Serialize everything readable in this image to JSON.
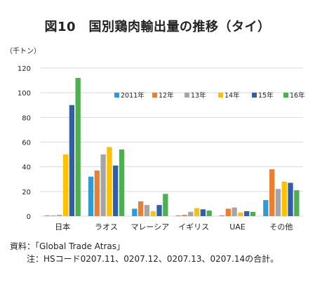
{
  "chart_data": {
    "type": "bar",
    "title": "図10　国別鶏肉輸出量の推移（タイ）",
    "unit_label": "（千トン）",
    "categories": [
      "日本",
      "ラオス",
      "マレーシア",
      "イギリス",
      "UAE",
      "その他"
    ],
    "series": [
      {
        "name": "2011年",
        "color": "#2e9bd6",
        "values": [
          0.5,
          32,
          6,
          0.5,
          0.5,
          13
        ]
      },
      {
        "name": "12年",
        "color": "#ed7d31",
        "values": [
          0.5,
          37,
          12,
          1,
          6,
          38
        ]
      },
      {
        "name": "13年",
        "color": "#a5a5a5",
        "values": [
          1,
          50,
          9,
          3.5,
          7,
          22
        ]
      },
      {
        "name": "14年",
        "color": "#ffc000",
        "values": [
          50,
          56,
          4,
          6.5,
          3,
          28
        ]
      },
      {
        "name": "15年",
        "color": "#2e5fa8",
        "values": [
          90,
          41,
          9,
          5.5,
          4,
          27
        ]
      },
      {
        "name": "16年",
        "color": "#4caf50",
        "values": [
          112,
          54,
          18,
          4.5,
          3.5,
          21
        ]
      }
    ],
    "ylim": [
      0,
      120
    ],
    "yticks": [
      0,
      20,
      40,
      60,
      80,
      100,
      120
    ],
    "grid": true,
    "legend_placement": "top-right"
  },
  "notes": {
    "source": "資料：「Global Trade Atras」",
    "note": "注：HSコード0207.11、0207.12、0207.13、0207.14の合計。"
  }
}
